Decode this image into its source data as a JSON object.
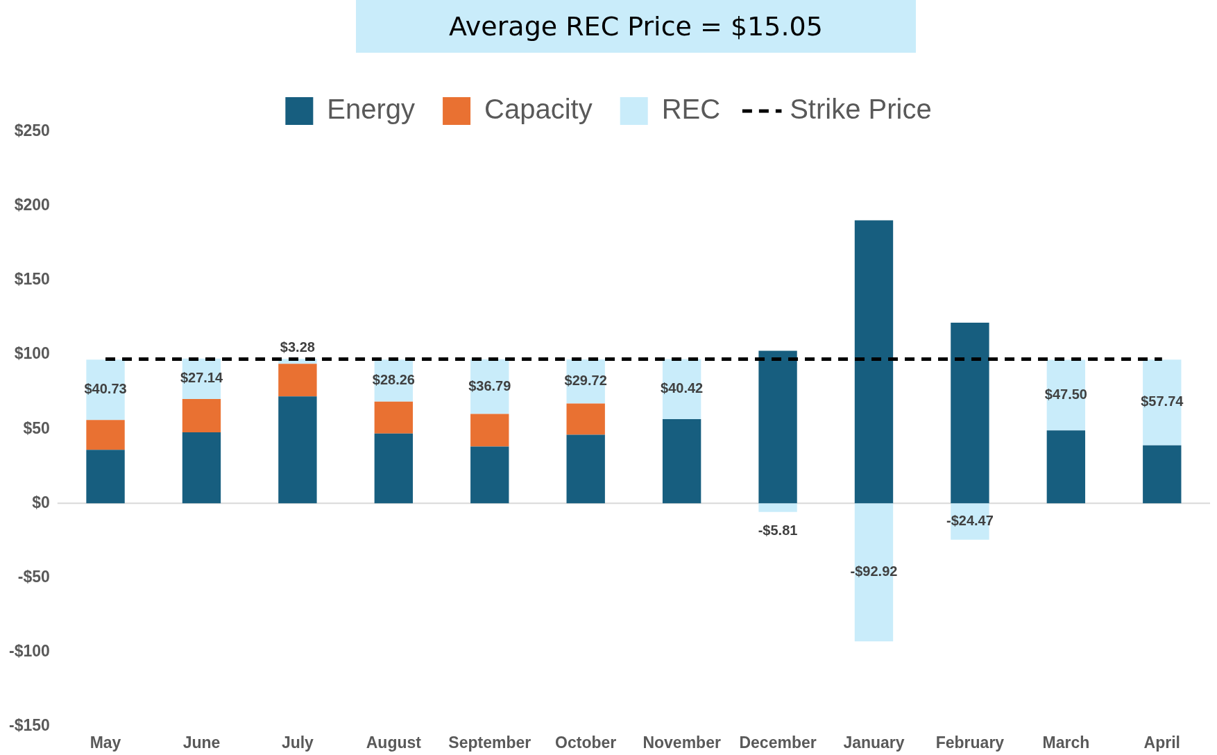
{
  "chart_data": {
    "type": "bar",
    "title": "Average REC Price = $15.05",
    "stacked": true,
    "legend": "top",
    "categories": [
      "May",
      "June",
      "July",
      "August",
      "September",
      "October",
      "November",
      "December",
      "January",
      "February",
      "March",
      "April"
    ],
    "series": [
      {
        "name": "Energy",
        "color": "#175e7f",
        "values": [
          36,
          47.8,
          71.9,
          46.9,
          38.2,
          46.1,
          56.6,
          102.6,
          190.4,
          121.5,
          49.1,
          39
        ]
      },
      {
        "name": "Capacity",
        "color": "#e97132",
        "values": [
          20,
          22.4,
          22,
          21.5,
          21.9,
          21,
          null,
          null,
          null,
          null,
          null,
          null
        ]
      },
      {
        "name": "REC",
        "color": "#c9ecfa",
        "values": [
          40.73,
          27.14,
          3.28,
          28.26,
          36.79,
          29.72,
          40.42,
          -5.81,
          -92.92,
          -24.47,
          47.5,
          57.74
        ],
        "value_labels": [
          "$40.73",
          "$27.14",
          "$3.28",
          "$28.26",
          "$36.79",
          "$29.72",
          "$40.42",
          "-$5.81",
          "-$92.92",
          "-$24.47",
          "$47.50",
          "$57.74"
        ]
      },
      {
        "name": "Strike Price",
        "type": "line",
        "color": "#000000",
        "line_style": "dashed",
        "marker": "none",
        "values": [
          97,
          97,
          97,
          97,
          97,
          97,
          97,
          97,
          97,
          97,
          97,
          97
        ]
      }
    ],
    "ylim": [
      -150,
      250
    ],
    "yticks": [
      {
        "value": -150,
        "label": "-$150"
      },
      {
        "value": -100,
        "label": "-$100"
      },
      {
        "value": -50,
        "label": "-$50"
      },
      {
        "value": 0,
        "label": "$0"
      },
      {
        "value": 50,
        "label": "$50"
      },
      {
        "value": 100,
        "label": "$100"
      },
      {
        "value": 150,
        "label": "$150"
      },
      {
        "value": 200,
        "label": "$200"
      },
      {
        "value": 250,
        "label": "$250"
      }
    ],
    "ref_lines": [
      {
        "axis": "y",
        "value": 0,
        "color": "#d9d9d9"
      }
    ]
  }
}
